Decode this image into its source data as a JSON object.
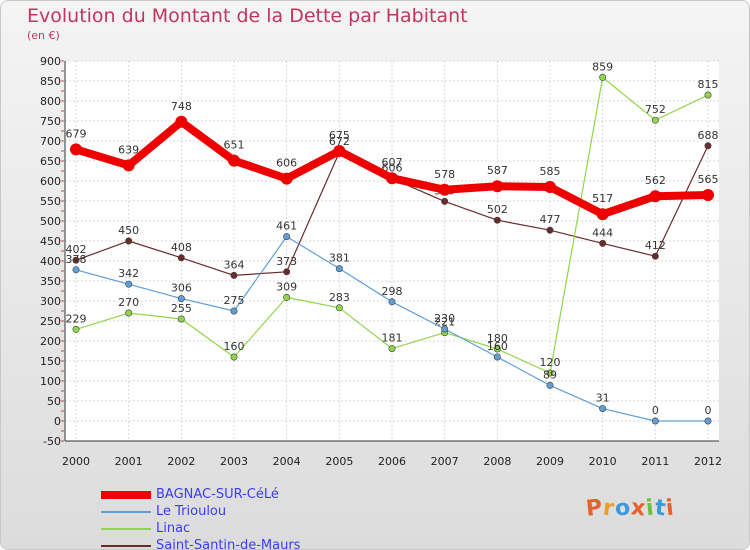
{
  "title": "Evolution du Montant de la Dette par Habitant",
  "subtitle": "(en €)",
  "logo": "Proxiti",
  "chart_data": {
    "type": "line",
    "title": "Evolution du Montant de la Dette par Habitant",
    "ylabel": "(en €)",
    "x": [
      "2000",
      "2001",
      "2002",
      "2003",
      "2004",
      "2005",
      "2006",
      "2007",
      "2008",
      "2009",
      "2010",
      "2011",
      "2012"
    ],
    "ylim": [
      -50,
      900
    ],
    "yticks": [
      -50,
      0,
      50,
      100,
      150,
      200,
      250,
      300,
      350,
      400,
      450,
      500,
      550,
      600,
      650,
      700,
      750,
      800,
      850,
      900
    ],
    "grid": true,
    "legend_position": "bottom-left",
    "series": [
      {
        "name": "BAGNAC-SUR-CéLé",
        "color": "#ee0000",
        "values": [
          679,
          639,
          748,
          651,
          606,
          675,
          607,
          578,
          587,
          585,
          517,
          562,
          565
        ]
      },
      {
        "name": "Le Trioulou",
        "color": "#5e9fd6",
        "values": [
          378,
          342,
          306,
          275,
          461,
          381,
          298,
          230,
          160,
          89,
          31,
          0,
          0
        ]
      },
      {
        "name": "Linac",
        "color": "#8fd64a",
        "values": [
          229,
          270,
          255,
          160,
          309,
          283,
          181,
          221,
          180,
          120,
          859,
          752,
          815
        ]
      },
      {
        "name": "Saint-Santin-de-Maurs",
        "color": "#6b2b2b",
        "values": [
          402,
          450,
          408,
          364,
          373,
          672,
          606,
          549,
          502,
          477,
          444,
          412,
          688
        ]
      }
    ]
  }
}
